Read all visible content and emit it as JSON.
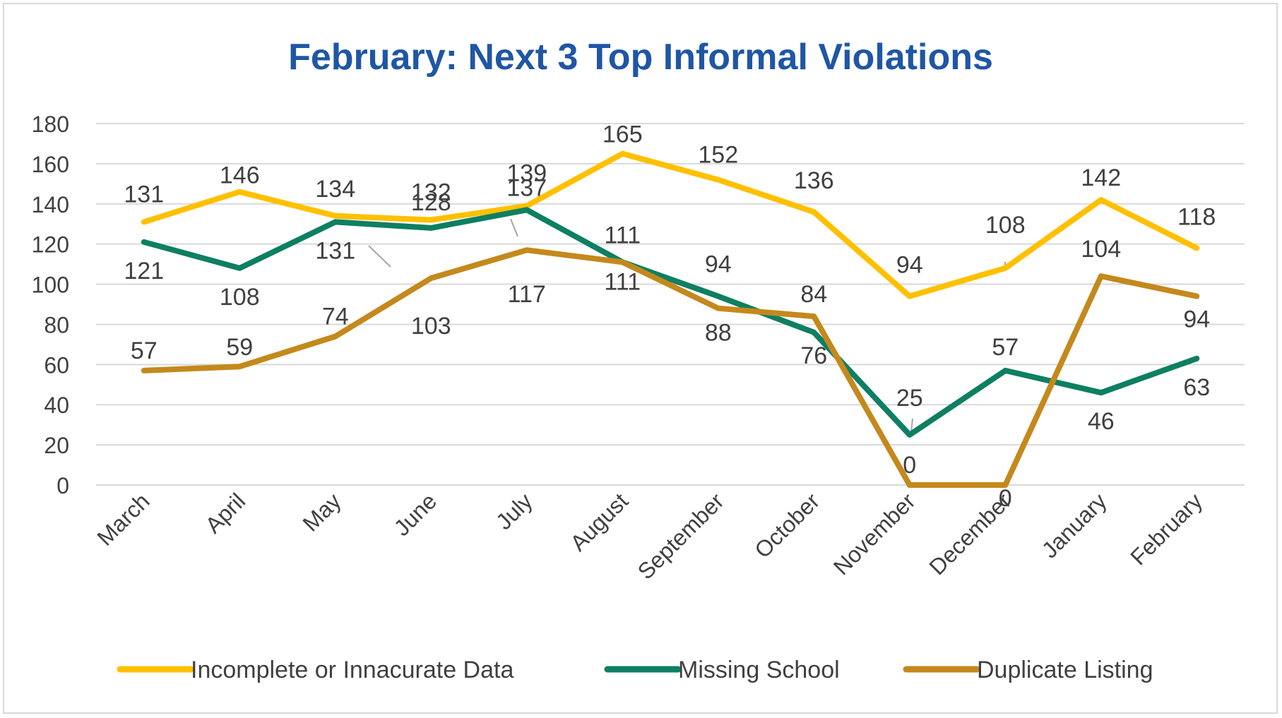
{
  "chart_data": {
    "type": "line",
    "title": "February: Next 3 Top Informal Violations",
    "categories": [
      "March",
      "April",
      "May",
      "June",
      "July",
      "August",
      "September",
      "October",
      "November",
      "December",
      "January",
      "February"
    ],
    "yticks": [
      "0",
      "20",
      "40",
      "60",
      "80",
      "100",
      "120",
      "140",
      "160",
      "180"
    ],
    "ylim": [
      0,
      180
    ],
    "grid": true,
    "legend_position": "bottom",
    "series": [
      {
        "name": "Incomplete or Innacurate Data",
        "color": "#ffc000",
        "values": [
          131,
          146,
          134,
          132,
          139,
          165,
          152,
          136,
          94,
          108,
          142,
          118
        ]
      },
      {
        "name": "Missing School",
        "color": "#0e7f62",
        "values": [
          121,
          108,
          131,
          128,
          137,
          111,
          94,
          76,
          25,
          57,
          46,
          63
        ]
      },
      {
        "name": "Duplicate Listing",
        "color": "#c4891c",
        "values": [
          57,
          59,
          74,
          103,
          117,
          111,
          88,
          84,
          0,
          0,
          104,
          94
        ]
      }
    ]
  }
}
